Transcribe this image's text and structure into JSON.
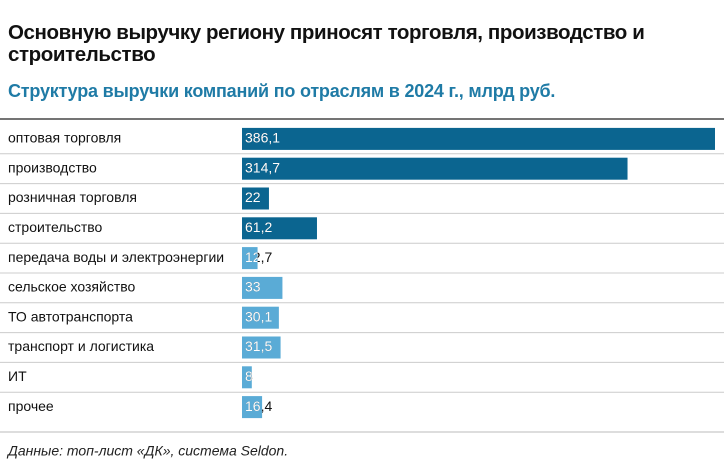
{
  "chart_data": {
    "type": "bar",
    "orientation": "horizontal",
    "title": "Основную выручку региону приносят торговля, производство и строительство",
    "subtitle": "Структура выручки компаний по отраслям в 2024 г., млрд руб.",
    "categories": [
      "оптовая торговля",
      "производство",
      "розничная торговля",
      "строительство",
      "передача воды и электроэнергии",
      "сельское хозяйство",
      "ТО автотранспорта",
      "транспорт и логистика",
      "ИТ",
      "прочее"
    ],
    "values": [
      386.1,
      314.7,
      22,
      61.2,
      12.7,
      33,
      30.1,
      31.5,
      8,
      16.4
    ],
    "value_labels": [
      "386,1",
      "314,7",
      "22",
      "61,2",
      "12,7",
      "33",
      "30,1",
      "31,5",
      "8",
      "16,4"
    ],
    "colors": [
      "#0b6590",
      "#0b6590",
      "#0b6590",
      "#0b6590",
      "#5aabd6",
      "#5aabd6",
      "#5aabd6",
      "#5aabd6",
      "#5aabd6",
      "#5aabd6"
    ],
    "source": "Данные: топ-лист «ДК», система Seldon."
  }
}
